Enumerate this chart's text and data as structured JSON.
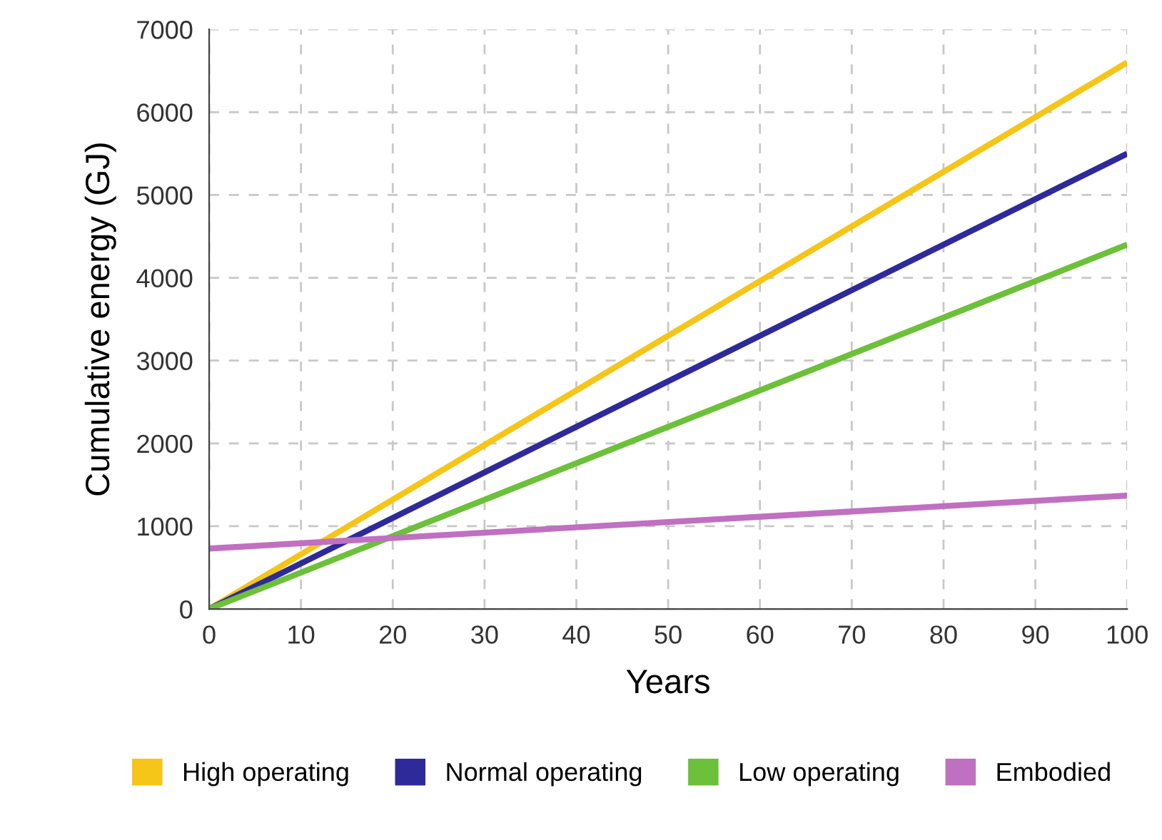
{
  "chart_data": {
    "type": "line",
    "xlabel": "Years",
    "ylabel": "Cumulative energy (GJ)",
    "x": [
      0,
      100
    ],
    "series": [
      {
        "name": "High operating",
        "color": "#f5c518",
        "values": [
          0,
          6600
        ]
      },
      {
        "name": "Normal operating",
        "color": "#2e2a9a",
        "values": [
          0,
          5500
        ]
      },
      {
        "name": "Low operating",
        "color": "#6cc03a",
        "values": [
          0,
          4400
        ]
      },
      {
        "name": "Embodied",
        "color": "#c070c0",
        "values": [
          730,
          1370
        ]
      }
    ],
    "xlim": [
      0,
      100
    ],
    "xticks": [
      0,
      10,
      20,
      30,
      40,
      50,
      60,
      70,
      80,
      90,
      100
    ],
    "ylim": [
      0,
      7000
    ],
    "yticks": [
      0,
      1000,
      2000,
      3000,
      4000,
      5000,
      6000,
      7000
    ],
    "grid": true,
    "legend": "bottom",
    "marker": "none",
    "line_style": "solid"
  }
}
